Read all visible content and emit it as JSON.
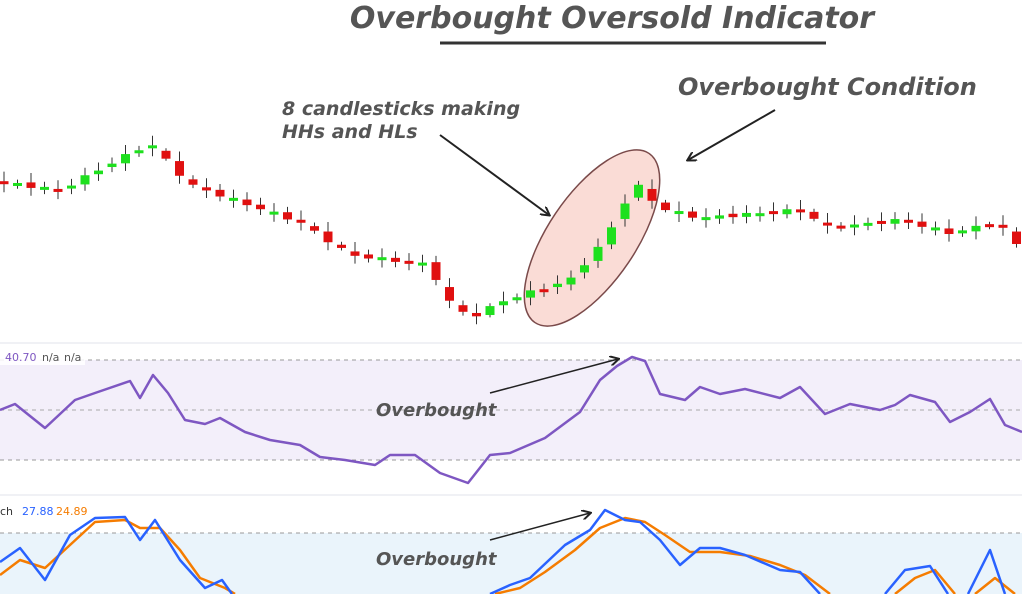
{
  "title": "Overbought Oversold Indicator",
  "annotations": {
    "candlestick_note": [
      "8 candlesticks making",
      "HHs and HLs"
    ],
    "overbought_condition": "Overbought Condition",
    "rsi_note": "Overbought",
    "stoch_note": "Overbought"
  },
  "rsi_legend": {
    "value": "40.70",
    "extra": [
      "n/a",
      "n/a"
    ]
  },
  "stoch_legend": {
    "name": "ch",
    "k": "27.88",
    "d": "24.89"
  }
}
